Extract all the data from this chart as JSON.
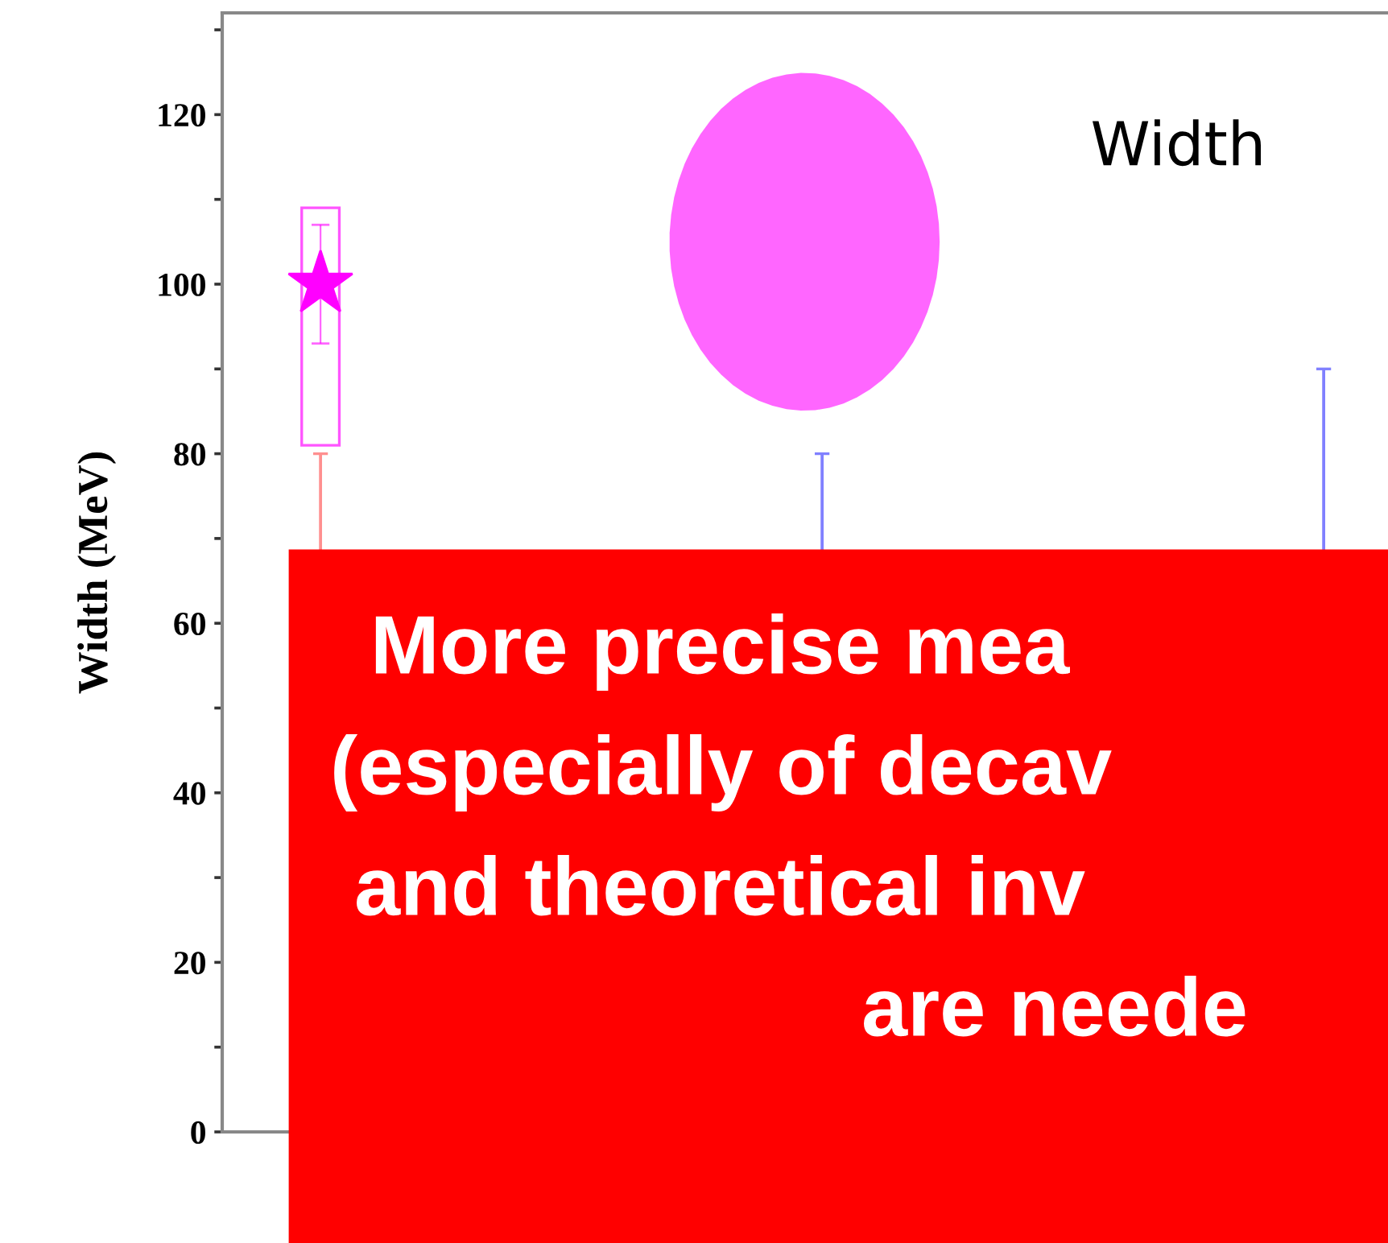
{
  "chart_data": {
    "type": "scatter",
    "categories": [
      null,
      null,
      null
    ],
    "ylabel": "Width (MeV)",
    "ylim": [
      0,
      132
    ],
    "yticks": [
      0,
      {
        "value": 10,
        "label": null
      },
      20,
      {
        "value": 30,
        "label": null
      },
      40,
      {
        "value": 50,
        "label": null
      },
      60,
      {
        "value": 70,
        "label": null
      },
      80,
      {
        "value": 90,
        "label": null
      },
      100,
      {
        "value": 110,
        "label": null
      },
      120,
      {
        "value": 130,
        "label": null
      }
    ],
    "tick_labels": "y",
    "marker": "star",
    "series": [
      {
        "type": "bar",
        "color": "#ff55ff",
        "base": [
          81,
          null,
          null
        ],
        "values": [
          28,
          null,
          null
        ]
      },
      {
        "type": "bar",
        "colors": [
          "#ff9090",
          "#8080ff",
          "#8080ff"
        ],
        "base": [
          68,
          68,
          68
        ],
        "values": [
          12,
          12,
          22
        ]
      },
      {
        "color": "#ff00ff",
        "values": [
          100,
          null,
          null
        ],
        "errors": [
          [
            93,
            107
          ],
          null,
          null
        ]
      }
    ],
    "annotations": [
      "Width",
      "More precise mea\n(especially of decav\nand theoretical inv\nare neede"
    ]
  }
}
